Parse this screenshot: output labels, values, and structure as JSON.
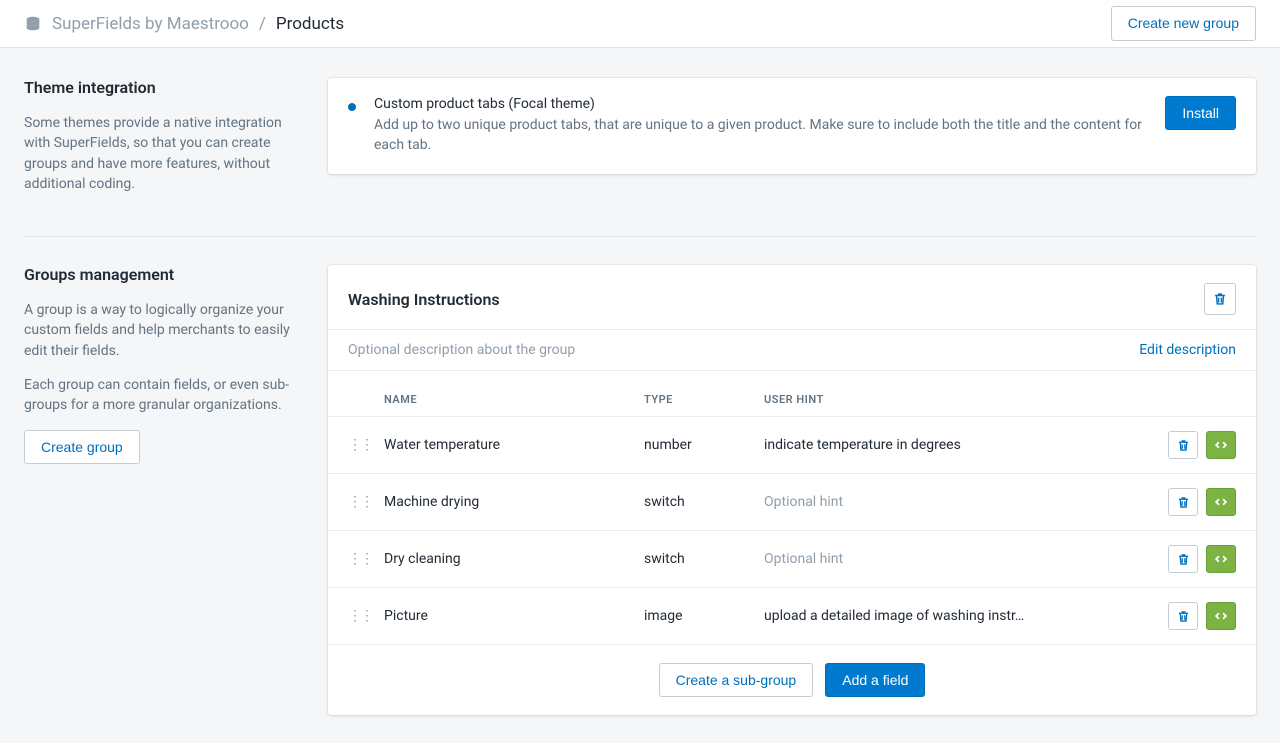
{
  "header": {
    "app_name": "SuperFields by Maestrooo",
    "separator": "/",
    "current": "Products",
    "create_group_btn": "Create new group"
  },
  "theme_section": {
    "title": "Theme integration",
    "desc": "Some themes provide a native integration with SuperFields, so that you can create groups and have more features, without additional coding.",
    "banner": {
      "title": "Custom product tabs (Focal theme)",
      "desc": "Add up to two unique product tabs, that are unique to a given product. Make sure to include both the title and the content for each tab.",
      "install_btn": "Install"
    }
  },
  "groups_section": {
    "title": "Groups management",
    "desc1": "A group is a way to logically organize your custom fields and help merchants to easily edit their fields.",
    "desc2": "Each group can contain fields, or even sub-groups for a more granular organizations.",
    "create_btn": "Create group",
    "group": {
      "name": "Washing Instructions",
      "desc_placeholder": "Optional description about the group",
      "edit_link": "Edit description",
      "cols": {
        "name": "Name",
        "type": "Type",
        "hint": "User hint"
      },
      "fields": [
        {
          "name": "Water temperature",
          "type": "number",
          "hint": "indicate temperature in degrees",
          "hint_ph": false
        },
        {
          "name": "Machine drying",
          "type": "switch",
          "hint": "Optional hint",
          "hint_ph": true
        },
        {
          "name": "Dry cleaning",
          "type": "switch",
          "hint": "Optional hint",
          "hint_ph": true
        },
        {
          "name": "Picture",
          "type": "image",
          "hint": "upload a detailed image of washing instr…",
          "hint_ph": false
        }
      ],
      "sub_btn": "Create a sub-group",
      "add_btn": "Add a field"
    }
  }
}
